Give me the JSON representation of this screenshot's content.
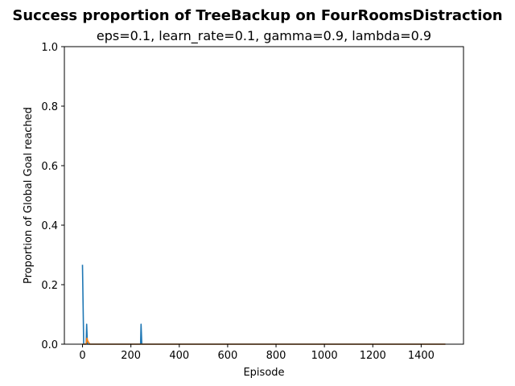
{
  "chart_data": {
    "type": "line",
    "title": "Success proportion of TreeBackup on FourRoomsDistraction",
    "subtitle": "eps=0.1, learn_rate=0.1, gamma=0.9, lambda=0.9",
    "xlabel": "Episode",
    "ylabel": "Proportion of Global Goal reached",
    "xlim": [
      -75,
      1575
    ],
    "ylim": [
      0.0,
      1.0
    ],
    "xticks": [
      0,
      200,
      400,
      600,
      800,
      1000,
      1200,
      1400
    ],
    "yticks": [
      0.0,
      0.2,
      0.4,
      0.6,
      0.8,
      1.0
    ],
    "ytick_labels": [
      "0.0",
      "0.2",
      "0.4",
      "0.6",
      "0.8",
      "1.0"
    ],
    "grid": false,
    "series": [
      {
        "color": "#1f77b4",
        "points": [
          [
            0,
            0.267
          ],
          [
            5,
            0.0
          ],
          [
            15,
            0.0
          ],
          [
            17,
            0.067
          ],
          [
            20,
            0.0
          ],
          [
            240,
            0.0
          ],
          [
            242,
            0.067
          ],
          [
            245,
            0.0
          ],
          [
            1500,
            0.0
          ]
        ]
      },
      {
        "color": "#ff7f0e",
        "points": [
          [
            0,
            0.0
          ],
          [
            15,
            0.0
          ],
          [
            18,
            0.02
          ],
          [
            22,
            0.01
          ],
          [
            30,
            0.0
          ],
          [
            1500,
            0.0
          ]
        ]
      }
    ]
  }
}
